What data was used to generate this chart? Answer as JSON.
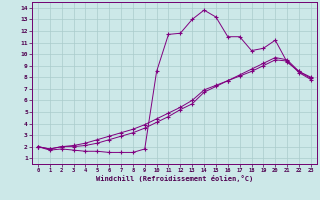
{
  "xlabel": "Windchill (Refroidissement éolien,°C)",
  "bg_color": "#cce8e8",
  "line_color": "#800080",
  "grid_color": "#aacccc",
  "x_ticks": [
    0,
    1,
    2,
    3,
    4,
    5,
    6,
    7,
    8,
    9,
    10,
    11,
    12,
    13,
    14,
    15,
    16,
    17,
    18,
    19,
    20,
    21,
    22,
    23
  ],
  "y_ticks": [
    1,
    2,
    3,
    4,
    5,
    6,
    7,
    8,
    9,
    10,
    11,
    12,
    13,
    14
  ],
  "xlim": [
    -0.5,
    23.5
  ],
  "ylim": [
    0.5,
    14.5
  ],
  "line1_x": [
    0,
    1,
    2,
    3,
    4,
    5,
    6,
    7,
    8,
    9,
    10,
    11,
    12,
    13,
    14,
    15,
    16,
    17,
    18,
    19,
    20,
    21,
    22,
    23
  ],
  "line1_y": [
    2.0,
    1.7,
    1.8,
    1.7,
    1.6,
    1.6,
    1.5,
    1.5,
    1.5,
    1.8,
    8.5,
    11.7,
    11.8,
    13.0,
    13.8,
    13.2,
    11.5,
    11.5,
    10.3,
    10.5,
    11.2,
    9.3,
    8.5,
    8.0
  ],
  "line2_x": [
    0,
    1,
    2,
    3,
    4,
    5,
    6,
    7,
    8,
    9,
    10,
    11,
    12,
    13,
    14,
    15,
    16,
    17,
    18,
    19,
    20,
    21,
    22,
    23
  ],
  "line2_y": [
    2.0,
    1.8,
    2.0,
    2.0,
    2.1,
    2.3,
    2.6,
    2.9,
    3.2,
    3.6,
    4.1,
    4.6,
    5.2,
    5.7,
    6.7,
    7.2,
    7.7,
    8.2,
    8.7,
    9.2,
    9.7,
    9.5,
    8.5,
    7.9
  ],
  "line3_x": [
    0,
    1,
    2,
    3,
    4,
    5,
    6,
    7,
    8,
    9,
    10,
    11,
    12,
    13,
    14,
    15,
    16,
    17,
    18,
    19,
    20,
    21,
    22,
    23
  ],
  "line3_y": [
    2.0,
    1.8,
    2.0,
    2.1,
    2.3,
    2.6,
    2.9,
    3.2,
    3.5,
    3.9,
    4.4,
    4.9,
    5.4,
    6.0,
    6.9,
    7.3,
    7.7,
    8.1,
    8.5,
    9.0,
    9.5,
    9.4,
    8.4,
    7.8
  ]
}
